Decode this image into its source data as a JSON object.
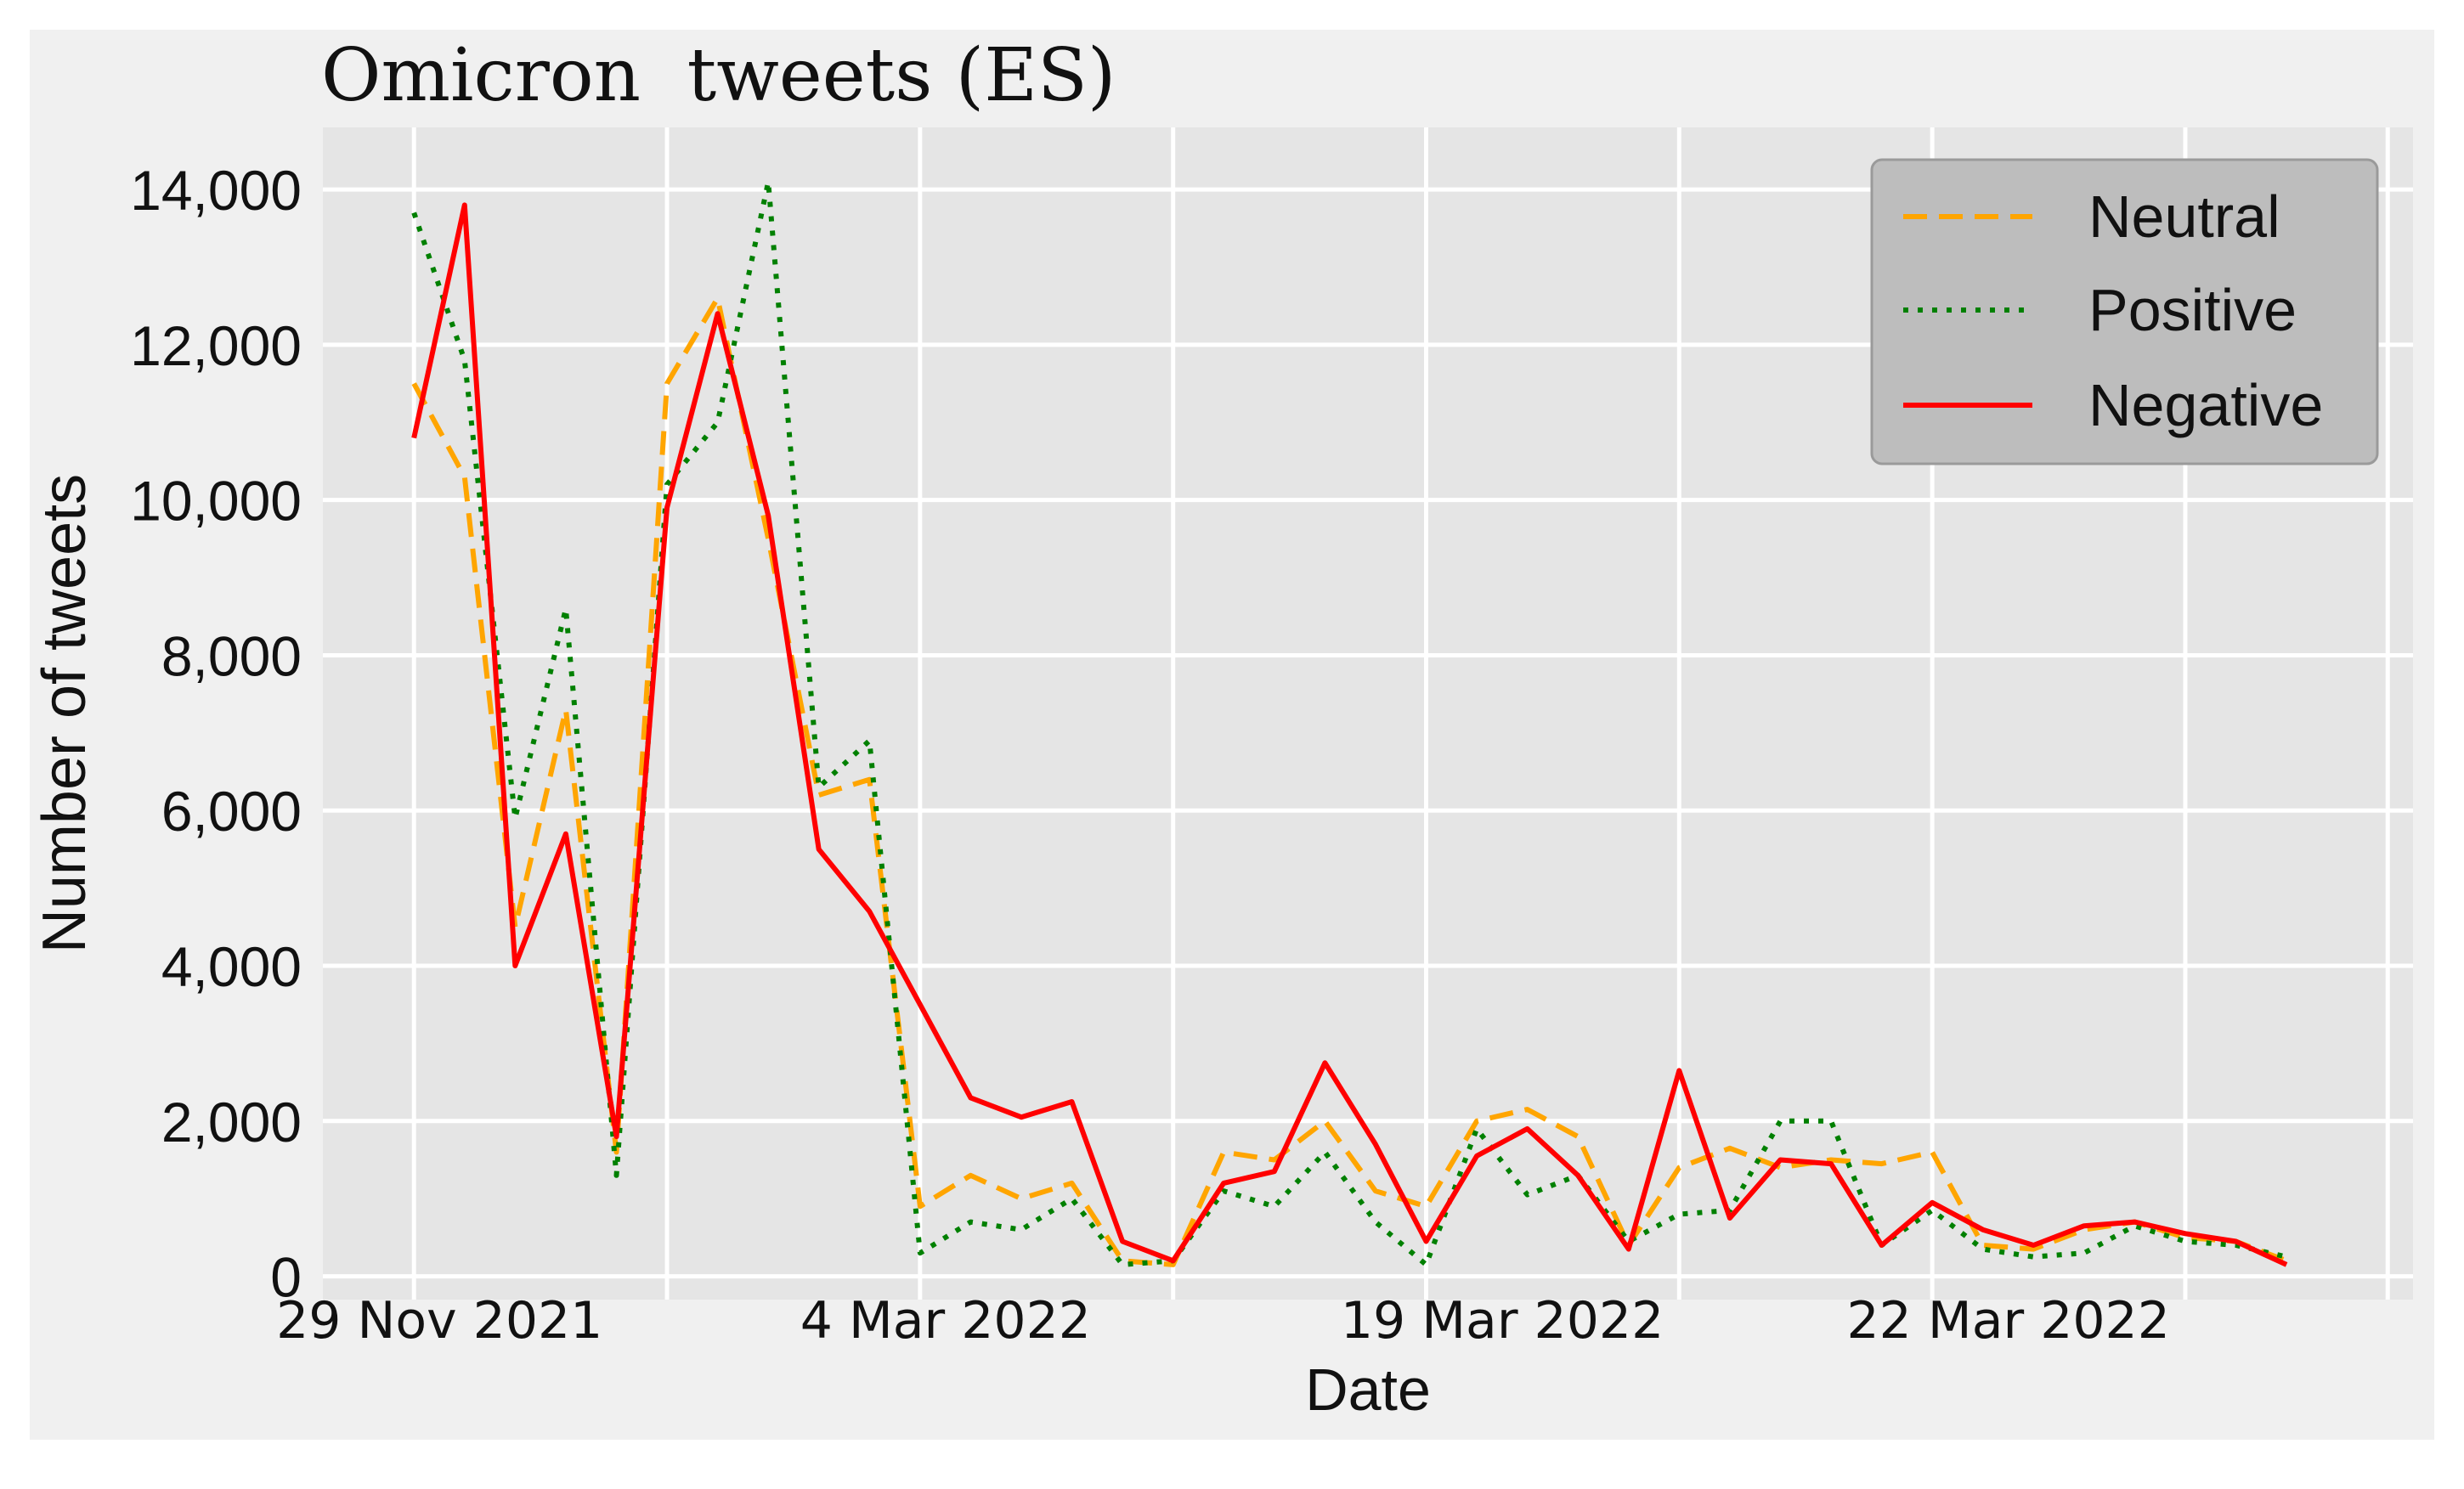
{
  "chart_data": {
    "type": "line",
    "title": "Omicron  tweets (ES)",
    "xlabel": "Date",
    "ylabel": "Number of tweets",
    "x": [
      0,
      1,
      2,
      3,
      4,
      5,
      6,
      7,
      8,
      9,
      10,
      11,
      12,
      13,
      14,
      15,
      16,
      17,
      18,
      19,
      20,
      21,
      22,
      23,
      24,
      25,
      26,
      27,
      28,
      29,
      30,
      31,
      32,
      33,
      34,
      35,
      36,
      37
    ],
    "xlim": [
      -1.8,
      39.5
    ],
    "ylim": [
      -300,
      14800
    ],
    "yticks": [
      {
        "value": 0,
        "label": "0"
      },
      {
        "value": 2000,
        "label": "2,000"
      },
      {
        "value": 4000,
        "label": "4,000"
      },
      {
        "value": 6000,
        "label": "6,000"
      },
      {
        "value": 8000,
        "label": "8,000"
      },
      {
        "value": 10000,
        "label": "10,000"
      },
      {
        "value": 12000,
        "label": "12,000"
      },
      {
        "value": 14000,
        "label": "14,000"
      }
    ],
    "xticks": [
      {
        "value": 0,
        "label": "29 Nov 2021"
      },
      {
        "value": 10,
        "label": "4 Mar 2022"
      },
      {
        "value": 21,
        "label": "19 Mar 2022"
      },
      {
        "value": 31,
        "label": "22 Mar 2022"
      }
    ],
    "xgrid": [
      0,
      5,
      10,
      15,
      20,
      25,
      30,
      35,
      39
    ],
    "grid": true,
    "legend_position": "top-right",
    "series": [
      {
        "name": "Neutral",
        "color": "#FFA500",
        "style": "dashed",
        "values": [
          11500,
          10300,
          4500,
          7300,
          1600,
          11500,
          12600,
          9500,
          6200,
          6400,
          900,
          1300,
          1000,
          1200,
          200,
          150,
          1600,
          1500,
          2000,
          1100,
          900,
          2000,
          2150,
          1800,
          400,
          1400,
          1650,
          1400,
          1500,
          1450,
          1600,
          400,
          350,
          600,
          700,
          500,
          450,
          200
        ]
      },
      {
        "name": "Positive",
        "color": "#008000",
        "style": "dotted",
        "values": [
          13700,
          11800,
          5900,
          8600,
          1300,
          10200,
          11000,
          14100,
          6300,
          6900,
          300,
          700,
          600,
          1000,
          150,
          200,
          1100,
          900,
          1600,
          700,
          150,
          1900,
          1050,
          1300,
          450,
          800,
          850,
          2000,
          2000,
          400,
          850,
          350,
          250,
          300,
          650,
          450,
          400,
          250
        ]
      },
      {
        "name": "Negative",
        "color": "#FF0000",
        "style": "solid",
        "values": [
          10800,
          13800,
          4000,
          5700,
          1800,
          9900,
          12400,
          9800,
          5500,
          4700,
          3500,
          2300,
          2050,
          2250,
          450,
          200,
          1200,
          1350,
          2750,
          1700,
          450,
          1550,
          1900,
          1300,
          350,
          2650,
          750,
          1500,
          1450,
          400,
          950,
          600,
          400,
          650,
          700,
          550,
          450,
          150
        ]
      }
    ]
  }
}
